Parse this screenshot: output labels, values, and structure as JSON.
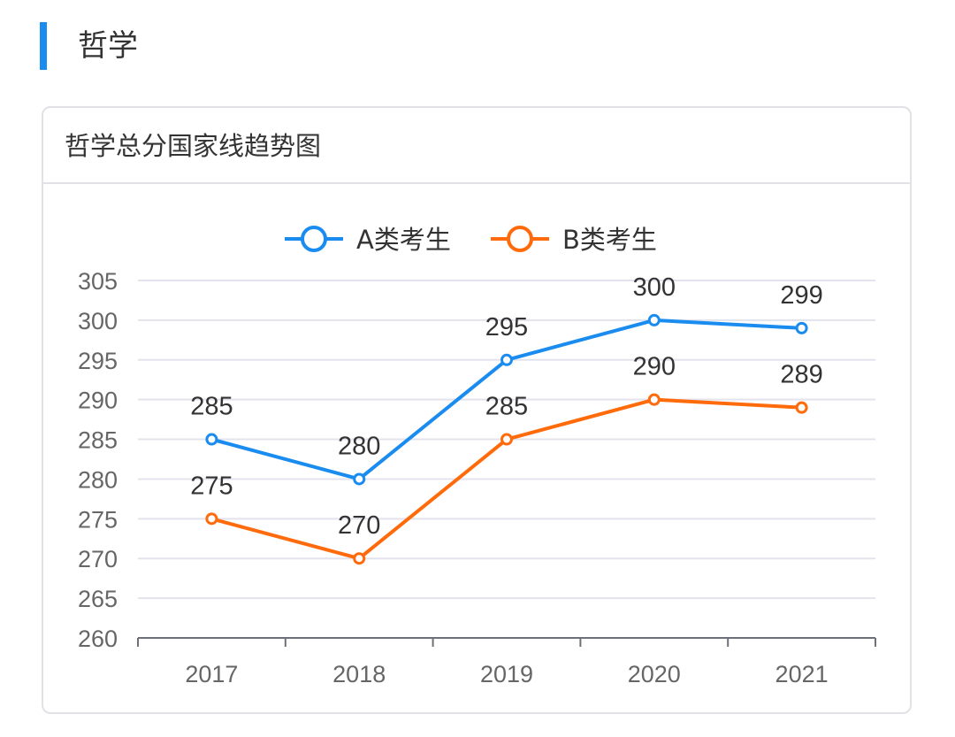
{
  "section_title": "哲学",
  "card_title": "哲学总分国家线趋势图",
  "colors": {
    "A": "#1a8cf0",
    "B": "#ff6a0a"
  },
  "chart_data": {
    "type": "line",
    "title": "哲学总分国家线趋势图",
    "categories": [
      "2017",
      "2018",
      "2019",
      "2020",
      "2021"
    ],
    "series": [
      {
        "name": "A类考生",
        "values": [
          285,
          280,
          295,
          300,
          299
        ]
      },
      {
        "name": "B类考生",
        "values": [
          275,
          270,
          285,
          290,
          289
        ]
      }
    ],
    "ylim": [
      260,
      305
    ],
    "yticks": [
      260,
      265,
      270,
      275,
      280,
      285,
      290,
      295,
      300,
      305
    ],
    "legend": "top-center",
    "grid": true,
    "xlabel": "",
    "ylabel": ""
  }
}
